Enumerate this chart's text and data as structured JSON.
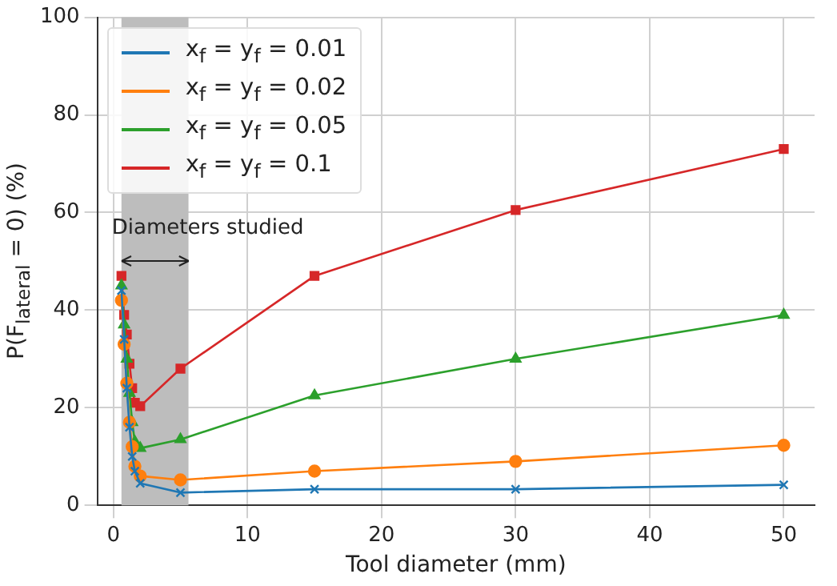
{
  "chart_data": {
    "type": "line",
    "xlabel": "Tool diameter (mm)",
    "ylabel": "P(F$_{lateral}$ = 0) (%)",
    "x": [
      0.6,
      0.8,
      1,
      1.2,
      1.4,
      1.6,
      2,
      5,
      15,
      30,
      50
    ],
    "series": [
      {
        "name": "x$_{f}$ = y$_{f}$ = 0.01",
        "color": "#1f77b4",
        "marker": "cross",
        "values": [
          44,
          34,
          24,
          16,
          10,
          7,
          4.5,
          2.6,
          3.3,
          3.3,
          4.2
        ]
      },
      {
        "name": "x$_{f}$ = y$_{f}$ = 0.02",
        "color": "#ff7f0e",
        "marker": "circle",
        "values": [
          42,
          33,
          25,
          17,
          12,
          8,
          6,
          5.2,
          7,
          9,
          12.3
        ]
      },
      {
        "name": "x$_{f}$ = y$_{f}$ = 0.05",
        "color": "#2ca02c",
        "marker": "triangle",
        "values": [
          45,
          37,
          30,
          23,
          17,
          13,
          11.7,
          13.5,
          22.5,
          30,
          39
        ]
      },
      {
        "name": "x$_{f}$ = y$_{f}$ = 0.1",
        "color": "#d62728",
        "marker": "square",
        "values": [
          47,
          39,
          35,
          29,
          24,
          21,
          20.3,
          28,
          47,
          60.5,
          73
        ]
      }
    ],
    "bands": [
      {
        "axis": "x",
        "from": 0.6,
        "to": 5.6,
        "label": "Diameters studied",
        "color": "#bdbdbd"
      }
    ],
    "xlim": [
      -1.2,
      52.3
    ],
    "xticks": [
      0,
      10,
      20,
      30,
      40,
      50
    ],
    "ylim": [
      0,
      100
    ],
    "yticks": [
      0,
      20,
      40,
      60,
      80,
      100
    ],
    "grid": true,
    "legend": "top left",
    "line_style": "solid"
  }
}
